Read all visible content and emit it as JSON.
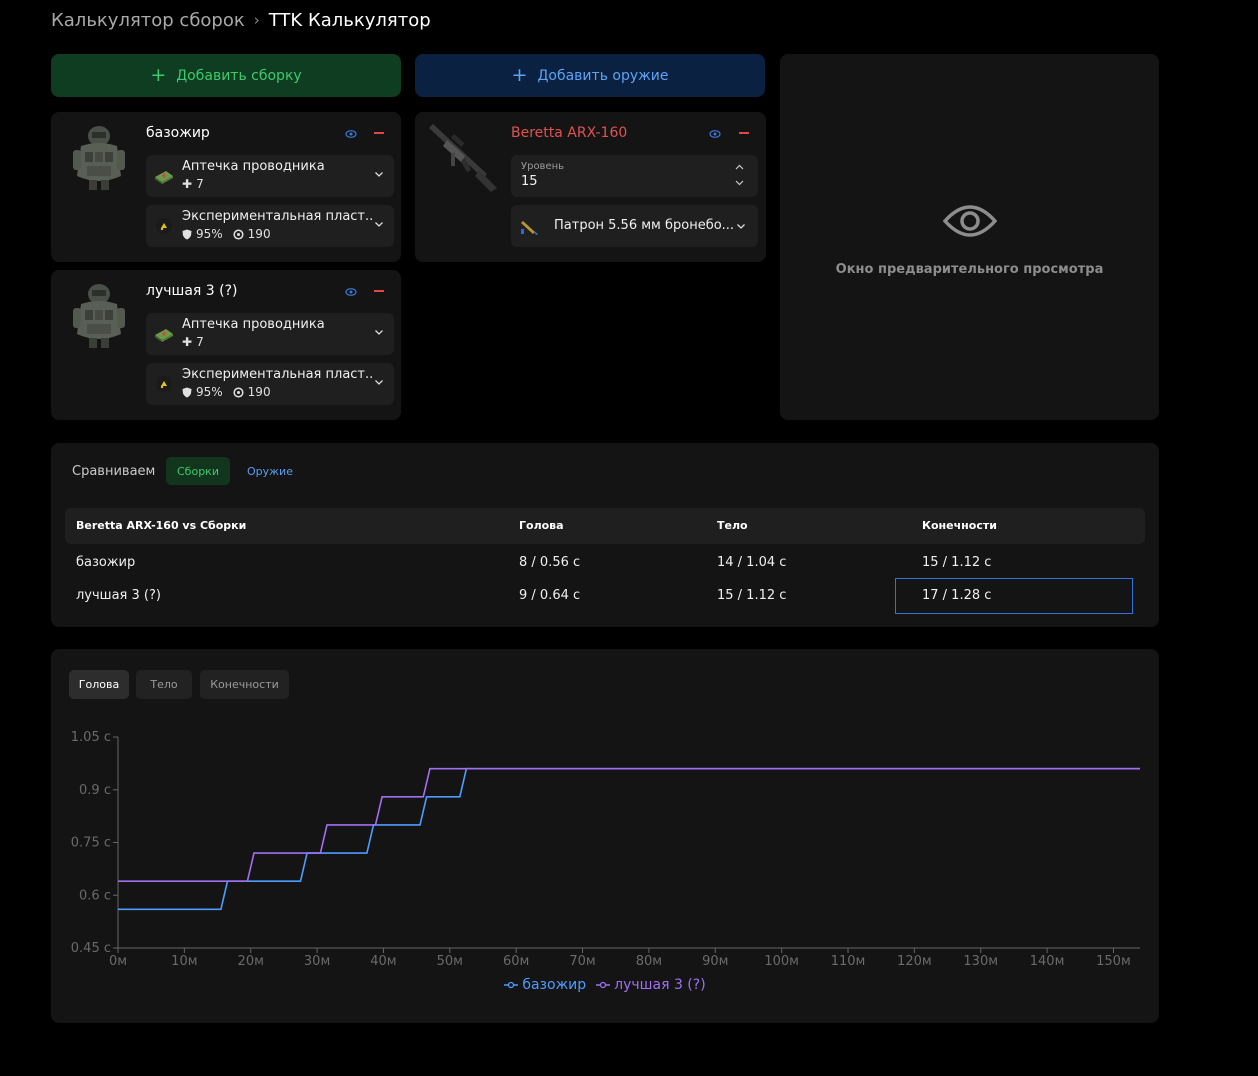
{
  "breadcrumb": {
    "parent": "Калькулятор сборок",
    "current": "TTK Калькулятор"
  },
  "buttons": {
    "add_build": "Добавить сборку",
    "add_weapon": "Добавить оружие"
  },
  "builds": [
    {
      "name": "базожир",
      "items": [
        {
          "name": "Аптечка проводника",
          "stat1": "7",
          "icon": "medkit-icon"
        },
        {
          "name": "Экспериментальная пласт...",
          "stat1": "95%",
          "stat2": "190",
          "icon": "armor-plate-icon"
        }
      ]
    },
    {
      "name": "лучшая 3 (?)",
      "items": [
        {
          "name": "Аптечка проводника",
          "stat1": "7",
          "icon": "medkit-icon"
        },
        {
          "name": "Экспериментальная пласт...",
          "stat1": "95%",
          "stat2": "190",
          "icon": "armor-plate-icon"
        }
      ]
    }
  ],
  "weapon": {
    "name": "Beretta ARX-160",
    "level_label": "Уровень",
    "level_value": "15",
    "ammo": "Патрон 5.56 мм бронебо..."
  },
  "preview": {
    "text": "Окно предварительного просмотра"
  },
  "compare": {
    "label": "Сравниваем",
    "tab_builds": "Сборки",
    "tab_weapons": "Оружие",
    "headers": [
      "Beretta ARX-160 vs Сборки",
      "Голова",
      "Тело",
      "Конечности"
    ],
    "rows": [
      [
        "базожир",
        "8 / 0.56 с",
        "14 / 1.04 с",
        "15 / 1.12 с"
      ],
      [
        "лучшая 3 (?)",
        "9 / 0.64 с",
        "15 / 1.12 с",
        "17 / 1.28 с"
      ]
    ]
  },
  "chart_tabs": [
    "Голова",
    "Тело",
    "Конечности"
  ],
  "colors": {
    "series1": "#4d9cff",
    "series2": "#a070f0",
    "accent_green": "#3ec96a",
    "accent_blue": "#5ea2f2",
    "danger": "#e64545"
  },
  "chart_data": {
    "type": "line",
    "step": true,
    "xlim": [
      0,
      154
    ],
    "ylim": [
      0.45,
      1.05
    ],
    "x_ticks": [
      0,
      10,
      20,
      30,
      40,
      50,
      60,
      70,
      80,
      90,
      100,
      110,
      120,
      130,
      140,
      150
    ],
    "x_tick_labels": [
      "0м",
      "10м",
      "20м",
      "30м",
      "40м",
      "50м",
      "60м",
      "70м",
      "80м",
      "90м",
      "100м",
      "110м",
      "120м",
      "130м",
      "140м",
      "150м"
    ],
    "y_ticks": [
      0.45,
      0.6,
      0.75,
      0.9,
      1.05
    ],
    "y_tick_labels": [
      "0.45 с",
      "0.6 с",
      "0.75 с",
      "0.9 с",
      "1.05 с"
    ],
    "series": [
      {
        "name": "базожир",
        "x": [
          0,
          15.5,
          16.5,
          27.5,
          28.5,
          37.5,
          38.5,
          45.5,
          46.5,
          51.5,
          52.5,
          154
        ],
        "y": [
          0.56,
          0.56,
          0.64,
          0.64,
          0.72,
          0.72,
          0.8,
          0.8,
          0.88,
          0.88,
          0.96,
          0.96
        ]
      },
      {
        "name": "лучшая 3 (?)",
        "x": [
          0,
          19.5,
          20.5,
          30.5,
          31.5,
          38.8,
          39.8,
          46,
          47,
          154
        ],
        "y": [
          0.64,
          0.64,
          0.72,
          0.72,
          0.8,
          0.8,
          0.88,
          0.88,
          0.96,
          0.96
        ]
      }
    ]
  }
}
